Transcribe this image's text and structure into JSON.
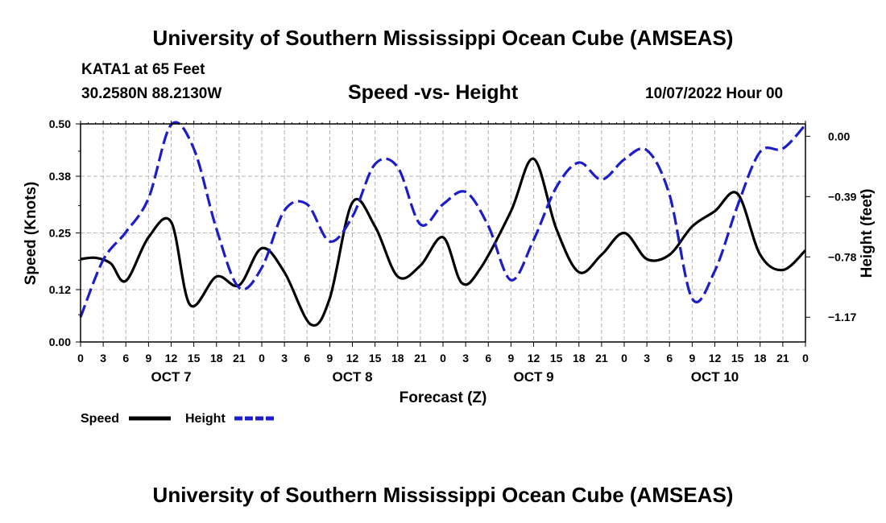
{
  "page": {
    "title_top": "University of Southern Mississippi Ocean Cube (AMSEAS)",
    "title_bottom": "University of Southern Mississippi Ocean Cube (AMSEAS)",
    "station": "KATA1 at 65 Feet",
    "coords": "30.2580N  88.2130W",
    "date": "10/07/2022 Hour 00"
  },
  "colors": {
    "speed": "#000000",
    "height": "#1c1cc8",
    "grid": "#b4b4b4"
  },
  "chart_data": {
    "type": "line",
    "title": "Speed -vs- Height",
    "xlabel": "Forecast (Z)",
    "ylabel": "Speed (Knots)",
    "y2label": "Height (feet)",
    "x_range": [
      0,
      96
    ],
    "ylim": [
      0,
      0.5
    ],
    "y2lim": [
      -1.33,
      0.08
    ],
    "x_ticks": [
      0,
      3,
      6,
      9,
      12,
      15,
      18,
      21,
      24,
      27,
      30,
      33,
      36,
      39,
      42,
      45,
      48,
      51,
      54,
      57,
      60,
      63,
      66,
      69,
      72,
      75,
      78,
      81,
      84,
      87,
      90,
      93,
      96
    ],
    "x_tick_labels": [
      "0",
      "3",
      "6",
      "9",
      "12",
      "15",
      "18",
      "21",
      "0",
      "3",
      "6",
      "9",
      "12",
      "15",
      "18",
      "21",
      "0",
      "3",
      "6",
      "9",
      "12",
      "15",
      "18",
      "21",
      "0",
      "3",
      "6",
      "9",
      "12",
      "15",
      "18",
      "21",
      "0"
    ],
    "y_ticks": [
      0.0,
      0.12,
      0.25,
      0.38,
      0.5
    ],
    "y_tick_labels": [
      "0.00",
      "0.12",
      "0.25",
      "0.38",
      "0.50"
    ],
    "y2_ticks": [
      0.0,
      -0.39,
      -0.78,
      -1.17
    ],
    "y2_tick_labels": [
      "0.00",
      "−0.39",
      "−0.78",
      "−1.17"
    ],
    "day_labels": [
      {
        "x": 12,
        "label": "OCT 7"
      },
      {
        "x": 36,
        "label": "OCT 8"
      },
      {
        "x": 60,
        "label": "OCT 9"
      },
      {
        "x": 84,
        "label": "OCT 10"
      }
    ],
    "grid": true,
    "legend_position": "bottom-left",
    "series": [
      {
        "name": "Speed",
        "axis": "left",
        "style": "solid",
        "points": [
          [
            0,
            0.19
          ],
          [
            2,
            0.193
          ],
          [
            4,
            0.18
          ],
          [
            6,
            0.14
          ],
          [
            9,
            0.24
          ],
          [
            12,
            0.275
          ],
          [
            14.5,
            0.085
          ],
          [
            18,
            0.15
          ],
          [
            21,
            0.13
          ],
          [
            24,
            0.215
          ],
          [
            27,
            0.16
          ],
          [
            30.5,
            0.04
          ],
          [
            33,
            0.1
          ],
          [
            36,
            0.32
          ],
          [
            39,
            0.265
          ],
          [
            42,
            0.15
          ],
          [
            45,
            0.175
          ],
          [
            48,
            0.24
          ],
          [
            50.5,
            0.135
          ],
          [
            53,
            0.17
          ],
          [
            57,
            0.3
          ],
          [
            60,
            0.42
          ],
          [
            63,
            0.26
          ],
          [
            66,
            0.16
          ],
          [
            69,
            0.2
          ],
          [
            72,
            0.25
          ],
          [
            75,
            0.19
          ],
          [
            78,
            0.2
          ],
          [
            81,
            0.265
          ],
          [
            84,
            0.3
          ],
          [
            87,
            0.34
          ],
          [
            90,
            0.2
          ],
          [
            93,
            0.165
          ],
          [
            96,
            0.21
          ]
        ]
      },
      {
        "name": "Height",
        "axis": "right",
        "style": "dashed",
        "points": [
          [
            0,
            -1.17
          ],
          [
            3,
            -0.8
          ],
          [
            6,
            -0.62
          ],
          [
            9,
            -0.4
          ],
          [
            12,
            0.1
          ],
          [
            15,
            -0.08
          ],
          [
            18,
            -0.6
          ],
          [
            21,
            -0.98
          ],
          [
            24,
            -0.85
          ],
          [
            27,
            -0.48
          ],
          [
            30,
            -0.44
          ],
          [
            33,
            -0.68
          ],
          [
            36,
            -0.52
          ],
          [
            39,
            -0.18
          ],
          [
            42,
            -0.2
          ],
          [
            45,
            -0.57
          ],
          [
            48,
            -0.44
          ],
          [
            51,
            -0.36
          ],
          [
            54,
            -0.58
          ],
          [
            57,
            -0.93
          ],
          [
            60,
            -0.67
          ],
          [
            63,
            -0.33
          ],
          [
            66,
            -0.17
          ],
          [
            69,
            -0.28
          ],
          [
            72,
            -0.15
          ],
          [
            75,
            -0.09
          ],
          [
            78,
            -0.38
          ],
          [
            81,
            -1.05
          ],
          [
            84,
            -0.87
          ],
          [
            87,
            -0.45
          ],
          [
            90,
            -0.1
          ],
          [
            93,
            -0.08
          ],
          [
            96,
            0.1
          ]
        ]
      }
    ]
  }
}
